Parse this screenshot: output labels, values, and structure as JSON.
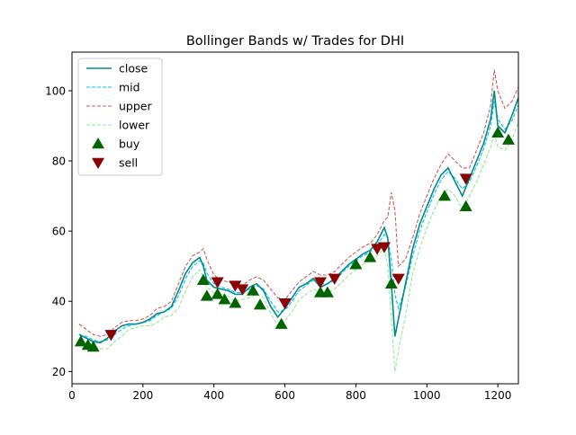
{
  "chart_data": {
    "type": "line",
    "title": "Bollinger Bands w/ Trades for DHI",
    "xlabel": "",
    "ylabel": "",
    "xlim": [
      0,
      1258
    ],
    "ylim": [
      16.5,
      111
    ],
    "xticks": [
      0,
      200,
      400,
      600,
      800,
      1000,
      1200
    ],
    "yticks": [
      20,
      40,
      60,
      80,
      100
    ],
    "legend": "upper-left",
    "grid": false,
    "colors": {
      "close": "#008b8b",
      "mid": "#00bfff",
      "upper": "#cd5c5c",
      "lower": "#90ee90",
      "buy": "#006400",
      "sell": "#8b0000"
    },
    "series": [
      {
        "name": "close",
        "style": "solid",
        "x": [
          20,
          40,
          60,
          80,
          100,
          120,
          140,
          160,
          180,
          200,
          220,
          240,
          260,
          280,
          300,
          320,
          340,
          360,
          370,
          380,
          400,
          420,
          440,
          460,
          480,
          500,
          520,
          540,
          560,
          580,
          600,
          620,
          640,
          660,
          680,
          700,
          720,
          740,
          760,
          780,
          800,
          820,
          840,
          860,
          880,
          890,
          900,
          910,
          920,
          940,
          960,
          980,
          1000,
          1020,
          1040,
          1060,
          1080,
          1100,
          1120,
          1140,
          1160,
          1180,
          1190,
          1200,
          1220,
          1240,
          1258
        ],
        "values": [
          30.5,
          29.5,
          28.5,
          28.2,
          29.5,
          31.5,
          33,
          33.5,
          33.5,
          34,
          35,
          36.5,
          37,
          38.5,
          43,
          48,
          51,
          52.5,
          50,
          46,
          44,
          43.5,
          43,
          42,
          42,
          44,
          45,
          43,
          38.5,
          35.5,
          38,
          41,
          44,
          45,
          46.5,
          44,
          45,
          46.5,
          48.5,
          50.5,
          52,
          53.5,
          54.5,
          57,
          61,
          58,
          45,
          30,
          35,
          45,
          55,
          62,
          67,
          72,
          76,
          78,
          74,
          70,
          75,
          80,
          85,
          92,
          100,
          90,
          88,
          93,
          98
        ]
      },
      {
        "name": "mid",
        "style": "dashed",
        "x": [
          20,
          40,
          60,
          80,
          100,
          120,
          140,
          160,
          180,
          200,
          220,
          240,
          260,
          280,
          300,
          320,
          340,
          360,
          370,
          380,
          400,
          420,
          440,
          460,
          480,
          500,
          520,
          540,
          560,
          580,
          600,
          620,
          640,
          660,
          680,
          700,
          720,
          740,
          760,
          780,
          800,
          820,
          840,
          860,
          880,
          890,
          900,
          910,
          920,
          940,
          960,
          980,
          1000,
          1020,
          1040,
          1060,
          1080,
          1100,
          1120,
          1140,
          1160,
          1180,
          1190,
          1200,
          1220,
          1240,
          1258
        ],
        "values": [
          30.5,
          30,
          29,
          28.5,
          29,
          30.5,
          32,
          33,
          33.5,
          34,
          34.5,
          36,
          37,
          38,
          41.5,
          46.5,
          50,
          51.5,
          51,
          48,
          45,
          44,
          43.5,
          42.5,
          42.5,
          43.5,
          44.5,
          43.5,
          40,
          37,
          37.5,
          40,
          43,
          44.5,
          46,
          45,
          45,
          46,
          48,
          50,
          51.5,
          53,
          54,
          56,
          59,
          58,
          52,
          42,
          38,
          44,
          53,
          60,
          65.5,
          70.5,
          74.5,
          77,
          75,
          72,
          74,
          78.5,
          83.5,
          90,
          97,
          92,
          89,
          91.5,
          96
        ]
      },
      {
        "name": "upper",
        "style": "dashed",
        "x": [
          20,
          40,
          60,
          80,
          100,
          120,
          140,
          160,
          180,
          200,
          220,
          240,
          260,
          280,
          300,
          320,
          340,
          360,
          370,
          380,
          400,
          420,
          440,
          460,
          480,
          500,
          520,
          540,
          560,
          580,
          600,
          620,
          640,
          660,
          680,
          700,
          720,
          740,
          760,
          780,
          800,
          820,
          840,
          860,
          880,
          890,
          900,
          910,
          920,
          940,
          960,
          980,
          1000,
          1020,
          1040,
          1060,
          1080,
          1100,
          1120,
          1140,
          1160,
          1180,
          1190,
          1200,
          1220,
          1240,
          1258
        ],
        "values": [
          33.5,
          32,
          30.5,
          30,
          30.5,
          32.5,
          34,
          34.5,
          34.5,
          35,
          36,
          38,
          38.5,
          40,
          45,
          50,
          53,
          54,
          55,
          52,
          47.5,
          46,
          45.5,
          45,
          44.5,
          46,
          47,
          46,
          43.5,
          41,
          40.5,
          43,
          45.5,
          47,
          48.5,
          47.5,
          47.5,
          48.5,
          50.5,
          52.5,
          54,
          55.5,
          56.5,
          59,
          63,
          64,
          71,
          66,
          50,
          52,
          58,
          65,
          70,
          75,
          79,
          82,
          80,
          78,
          78,
          83,
          88,
          96,
          106,
          100,
          95,
          97,
          101
        ]
      },
      {
        "name": "lower",
        "style": "dashed",
        "x": [
          20,
          40,
          60,
          80,
          100,
          120,
          140,
          160,
          180,
          200,
          220,
          240,
          260,
          280,
          300,
          320,
          340,
          360,
          370,
          380,
          400,
          420,
          440,
          460,
          480,
          500,
          520,
          540,
          560,
          580,
          600,
          620,
          640,
          660,
          680,
          700,
          720,
          740,
          760,
          780,
          800,
          820,
          840,
          860,
          880,
          890,
          900,
          910,
          920,
          940,
          960,
          980,
          1000,
          1020,
          1040,
          1060,
          1080,
          1100,
          1120,
          1140,
          1160,
          1180,
          1190,
          1200,
          1220,
          1240,
          1258
        ],
        "values": [
          28,
          27.5,
          27,
          26.5,
          26.5,
          28.5,
          30,
          32,
          32.5,
          33,
          33,
          34,
          35.5,
          36,
          38,
          43,
          47,
          49,
          47,
          44,
          42.5,
          42,
          41.5,
          40,
          40.5,
          41,
          42,
          41,
          36.5,
          33,
          34.5,
          37,
          40.5,
          42,
          43.5,
          42.5,
          42.5,
          43.5,
          45.5,
          47.5,
          49,
          50.5,
          51.5,
          53,
          55,
          50,
          35,
          20,
          26,
          36,
          48,
          55,
          61,
          66,
          70,
          72,
          70,
          66,
          70,
          74,
          79,
          84,
          88,
          84,
          83,
          86,
          91
        ]
      }
    ],
    "buy": {
      "name": "buy",
      "x": [
        25,
        45,
        60,
        370,
        380,
        410,
        430,
        460,
        510,
        530,
        590,
        700,
        720,
        800,
        840,
        900,
        1050,
        1110,
        1200,
        1230
      ],
      "values": [
        28.5,
        27.5,
        27,
        46,
        41.5,
        42,
        40.5,
        39.5,
        43,
        39,
        33.5,
        42.5,
        42.5,
        50.5,
        52.5,
        45,
        70,
        67,
        88,
        86
      ]
    },
    "sell": {
      "name": "sell",
      "x": [
        110,
        410,
        460,
        480,
        600,
        700,
        740,
        860,
        880,
        920,
        1110
      ],
      "values": [
        30.5,
        45.5,
        44.5,
        43.5,
        39.5,
        45.5,
        46.5,
        55,
        55.5,
        46.5,
        75
      ]
    }
  }
}
